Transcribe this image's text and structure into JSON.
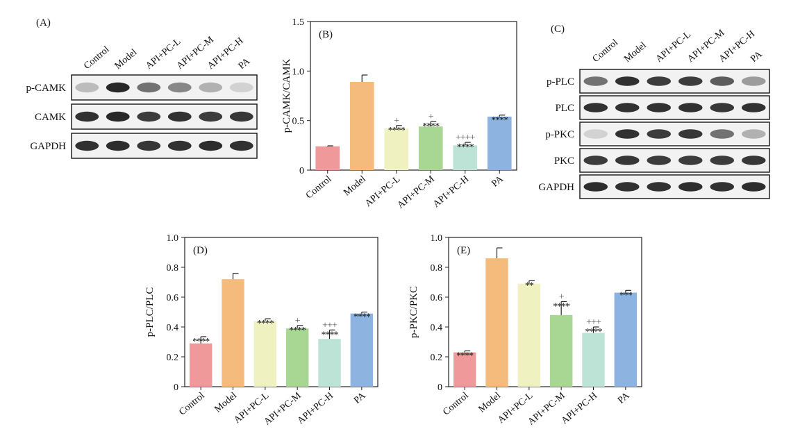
{
  "colors": {
    "Control": "#f0999a",
    "Model": "#f5bb7d",
    "API+PC-L": "#eff1c0",
    "API+PC-M": "#a8d693",
    "API+PC-H": "#bde2d6",
    "PA": "#8db3e0",
    "frame": "#222222",
    "blot_band": "#1c1c1c"
  },
  "blot_a": {
    "panel_label": "(A)",
    "lanes": [
      "Control",
      "Model",
      "API+PC-L",
      "API+PC-M",
      "API+PC-H",
      "PA"
    ],
    "rows": [
      {
        "label": "p-CAMK",
        "intensity": [
          0.25,
          0.95,
          0.6,
          0.5,
          0.3,
          0.15
        ]
      },
      {
        "label": "CAMK",
        "intensity": [
          0.9,
          0.95,
          0.85,
          0.9,
          0.85,
          0.88
        ]
      },
      {
        "label": "GAPDH",
        "intensity": [
          0.9,
          0.92,
          0.88,
          0.9,
          0.92,
          0.9
        ]
      }
    ]
  },
  "blot_c": {
    "panel_label": "(C)",
    "lanes": [
      "Control",
      "Model",
      "API+PC-L",
      "API+PC-M",
      "API+PC-H",
      "PA"
    ],
    "rows": [
      {
        "label": "p-PLC",
        "intensity": [
          0.6,
          0.9,
          0.85,
          0.85,
          0.7,
          0.4
        ]
      },
      {
        "label": "PLC",
        "intensity": [
          0.9,
          0.9,
          0.9,
          0.9,
          0.88,
          0.9
        ]
      },
      {
        "label": "p-PKC",
        "intensity": [
          0.15,
          0.9,
          0.85,
          0.88,
          0.6,
          0.3
        ]
      },
      {
        "label": "PKC",
        "intensity": [
          0.85,
          0.88,
          0.85,
          0.85,
          0.85,
          0.88
        ]
      },
      {
        "label": "GAPDH",
        "intensity": [
          0.92,
          0.9,
          0.9,
          0.92,
          0.9,
          0.92
        ]
      }
    ]
  },
  "chart_data": [
    {
      "type": "bar",
      "panel_label": "(B)",
      "ylabel": "p-CAMK/CAMK",
      "ylim": [
        0,
        1.5
      ],
      "yticks": [
        "0",
        "0.5",
        "1.0",
        "1.5"
      ],
      "ytick_values": [
        0,
        0.5,
        1.0,
        1.5
      ],
      "categories": [
        "Control",
        "Model",
        "API+PC-L",
        "API+PC-M",
        "API+PC-H",
        "PA"
      ],
      "values": [
        0.24,
        0.89,
        0.42,
        0.44,
        0.25,
        0.54
      ],
      "errors": [
        0.005,
        0.07,
        0.03,
        0.05,
        0.03,
        0.015
      ],
      "significance": [
        "",
        "",
        "****",
        "****",
        "****",
        "****"
      ],
      "plus_marks": [
        "",
        "",
        "+",
        "+",
        "++++",
        ""
      ]
    },
    {
      "type": "bar",
      "panel_label": "(D)",
      "ylabel": "p-PLC/PLC",
      "ylim": [
        0,
        1.0
      ],
      "yticks": [
        "0",
        "0.2",
        "0.4",
        "0.6",
        "0.8",
        "1.0"
      ],
      "ytick_values": [
        0,
        0.2,
        0.4,
        0.6,
        0.8,
        1.0
      ],
      "categories": [
        "Control",
        "Model",
        "API+PC-L",
        "API+PC-M",
        "API+PC-H",
        "PA"
      ],
      "values": [
        0.29,
        0.72,
        0.44,
        0.39,
        0.32,
        0.49
      ],
      "errors": [
        0.045,
        0.04,
        0.015,
        0.02,
        0.06,
        0.01
      ],
      "significance": [
        "****",
        "",
        "****",
        "****",
        "****",
        "****"
      ],
      "plus_marks": [
        "",
        "",
        "",
        "+",
        "+++",
        ""
      ]
    },
    {
      "type": "bar",
      "panel_label": "(E)",
      "ylabel": "p-PKC/PKC",
      "ylim": [
        0,
        1.0
      ],
      "yticks": [
        "0",
        "0.2",
        "0.4",
        "0.6",
        "0.8",
        "1.0"
      ],
      "ytick_values": [
        0,
        0.2,
        0.4,
        0.6,
        0.8,
        1.0
      ],
      "categories": [
        "Control",
        "Model",
        "API+PC-L",
        "API+PC-M",
        "API+PC-H",
        "PA"
      ],
      "values": [
        0.23,
        0.86,
        0.69,
        0.48,
        0.36,
        0.63
      ],
      "errors": [
        0.01,
        0.07,
        0.02,
        0.09,
        0.04,
        0.015
      ],
      "significance": [
        "****",
        "",
        "**",
        "****",
        "****",
        "***"
      ],
      "plus_marks": [
        "",
        "",
        "",
        "+",
        "+++",
        ""
      ]
    }
  ]
}
